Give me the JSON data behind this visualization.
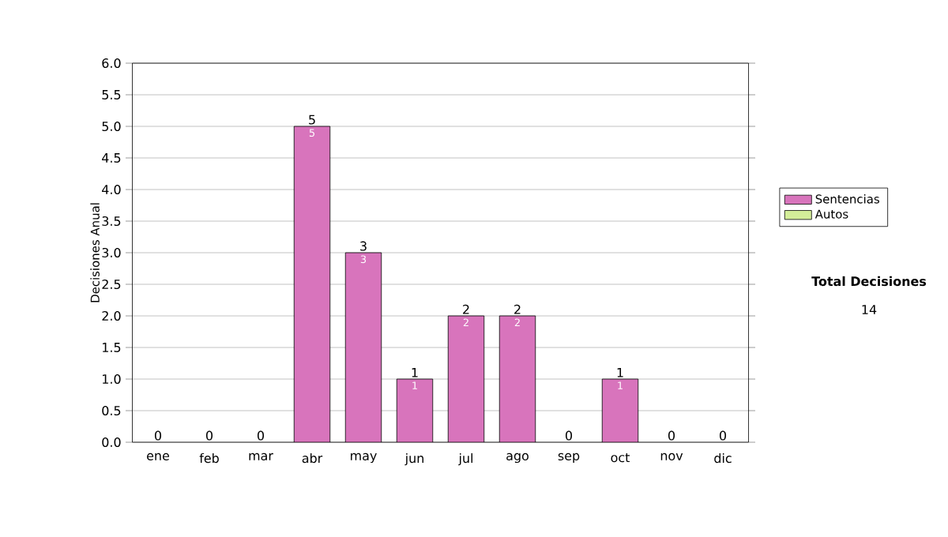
{
  "chart_data": {
    "type": "bar",
    "stacked": true,
    "ylabel": "Decisiones Anual",
    "categories": [
      "ene",
      "feb",
      "mar",
      "abr",
      "may",
      "jun",
      "jul",
      "ago",
      "sep",
      "oct",
      "nov",
      "dic"
    ],
    "series": [
      {
        "name": "Sentencias",
        "color": "#d874bc",
        "values": [
          0,
          0,
          0,
          5,
          3,
          1,
          2,
          2,
          0,
          1,
          0,
          0
        ],
        "value_labels": [
          null,
          null,
          null,
          "5",
          "3",
          "1",
          "2",
          "2",
          null,
          "1",
          null,
          null
        ]
      },
      {
        "name": "Autos",
        "color": "#d4ee99",
        "values": [
          0,
          0,
          0,
          0,
          0,
          0,
          0,
          0,
          0,
          0,
          0,
          0
        ]
      }
    ],
    "totals": [
      "0",
      "0",
      "0",
      "5",
      "3",
      "1",
      "2",
      "2",
      "0",
      "1",
      "0",
      "0"
    ],
    "ylim": [
      0,
      6
    ],
    "yticks": [
      {
        "value": 0,
        "label": "0.0"
      },
      {
        "value": 0.5,
        "label": "0.5"
      },
      {
        "value": 1,
        "label": "1.0"
      },
      {
        "value": 1.5,
        "label": "1.5"
      },
      {
        "value": 2,
        "label": "2.0"
      },
      {
        "value": 2.5,
        "label": "2.5"
      },
      {
        "value": 3,
        "label": "3.0"
      },
      {
        "value": 3.5,
        "label": "3.5"
      },
      {
        "value": 4,
        "label": "4.0"
      },
      {
        "value": 4.5,
        "label": "4.5"
      },
      {
        "value": 5,
        "label": "5.0"
      },
      {
        "value": 5.5,
        "label": "5.5"
      },
      {
        "value": 6,
        "label": "6.0"
      }
    ],
    "grid": "y",
    "legend": "right",
    "annotations": [
      "Total Decisiones",
      "14"
    ]
  }
}
